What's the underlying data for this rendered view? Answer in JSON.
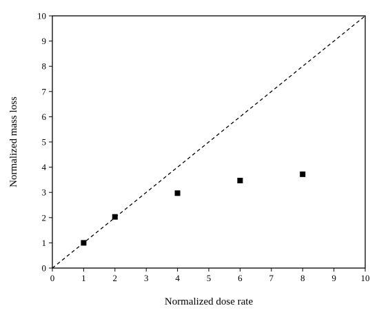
{
  "chart_data": {
    "type": "scatter",
    "title": "",
    "xlabel": "Normalized dose rate",
    "ylabel": "Normalized mass loss",
    "xlim": [
      0,
      10
    ],
    "ylim": [
      0,
      10
    ],
    "xticks": [
      "0",
      "1",
      "2",
      "3",
      "4",
      "5",
      "6",
      "7",
      "8",
      "9",
      "10"
    ],
    "yticks": [
      "0",
      "1",
      "2",
      "3",
      "4",
      "5",
      "6",
      "7",
      "8",
      "9",
      "10"
    ],
    "grid": false,
    "legend": "none",
    "series": [
      {
        "marker": "square",
        "color": "#000000",
        "x": [
          1,
          2,
          4,
          6,
          8
        ],
        "y": [
          1.0,
          2.03,
          2.97,
          3.47,
          3.72
        ]
      }
    ],
    "reference_line": {
      "style": "dashed",
      "color": "#000000",
      "x": [
        0,
        10
      ],
      "y": [
        0,
        10
      ]
    }
  }
}
